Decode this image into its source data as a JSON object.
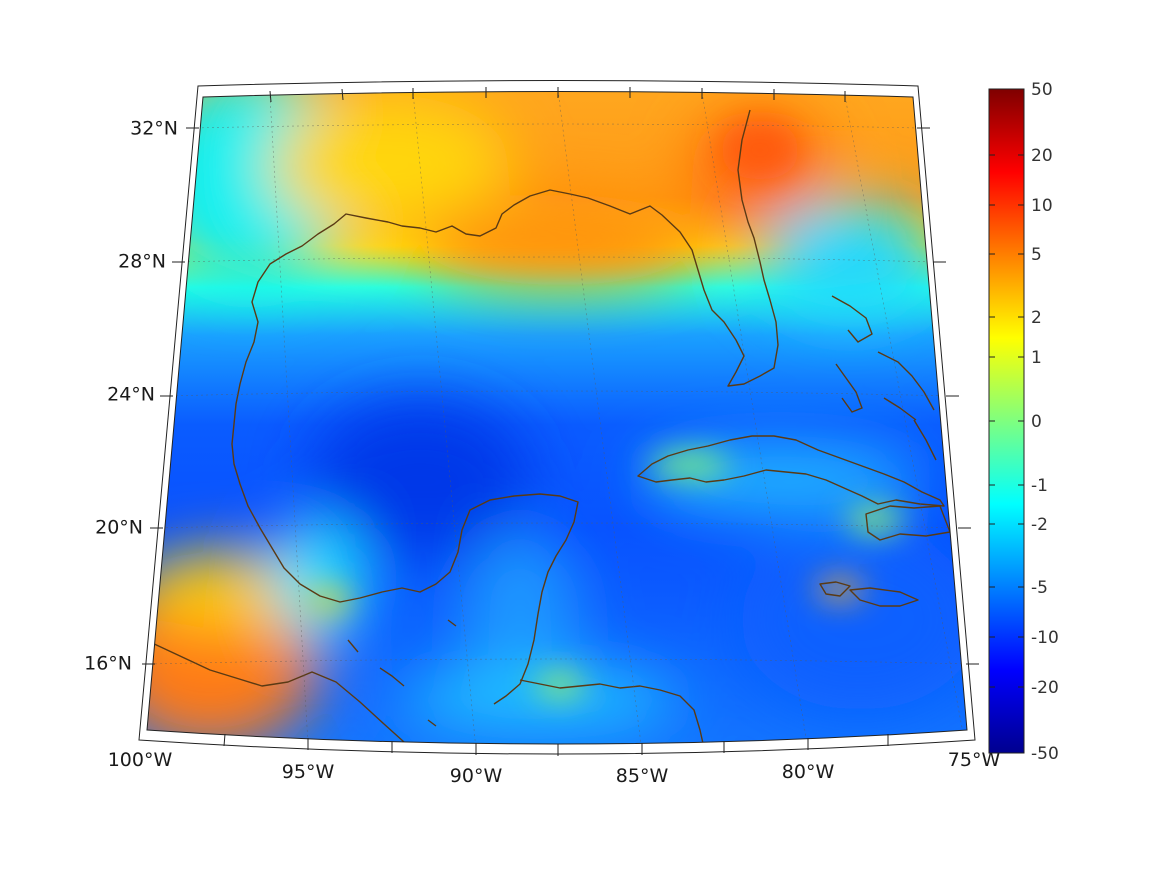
{
  "map": {
    "projection": "conic",
    "region": "Gulf of Mexico and Caribbean",
    "longitude_labels": [
      "100°W",
      "95°W",
      "90°W",
      "85°W",
      "80°W",
      "75°W"
    ],
    "latitude_labels": [
      "32°N",
      "28°N",
      "24°N",
      "20°N",
      "16°N"
    ],
    "longitude_range": [
      -100,
      -75
    ],
    "latitude_range": [
      14,
      33
    ],
    "grid": true,
    "coastline_color": "#5a3a14"
  },
  "colorbar": {
    "colormap": "jet",
    "placement": "right",
    "scale": "symmetric-log",
    "tick_labels": [
      "50",
      "20",
      "10",
      "5",
      "2",
      "1",
      "0",
      "-1",
      "-2",
      "-5",
      "-10",
      "-20",
      "-50"
    ],
    "range": [
      -50,
      50
    ]
  }
}
